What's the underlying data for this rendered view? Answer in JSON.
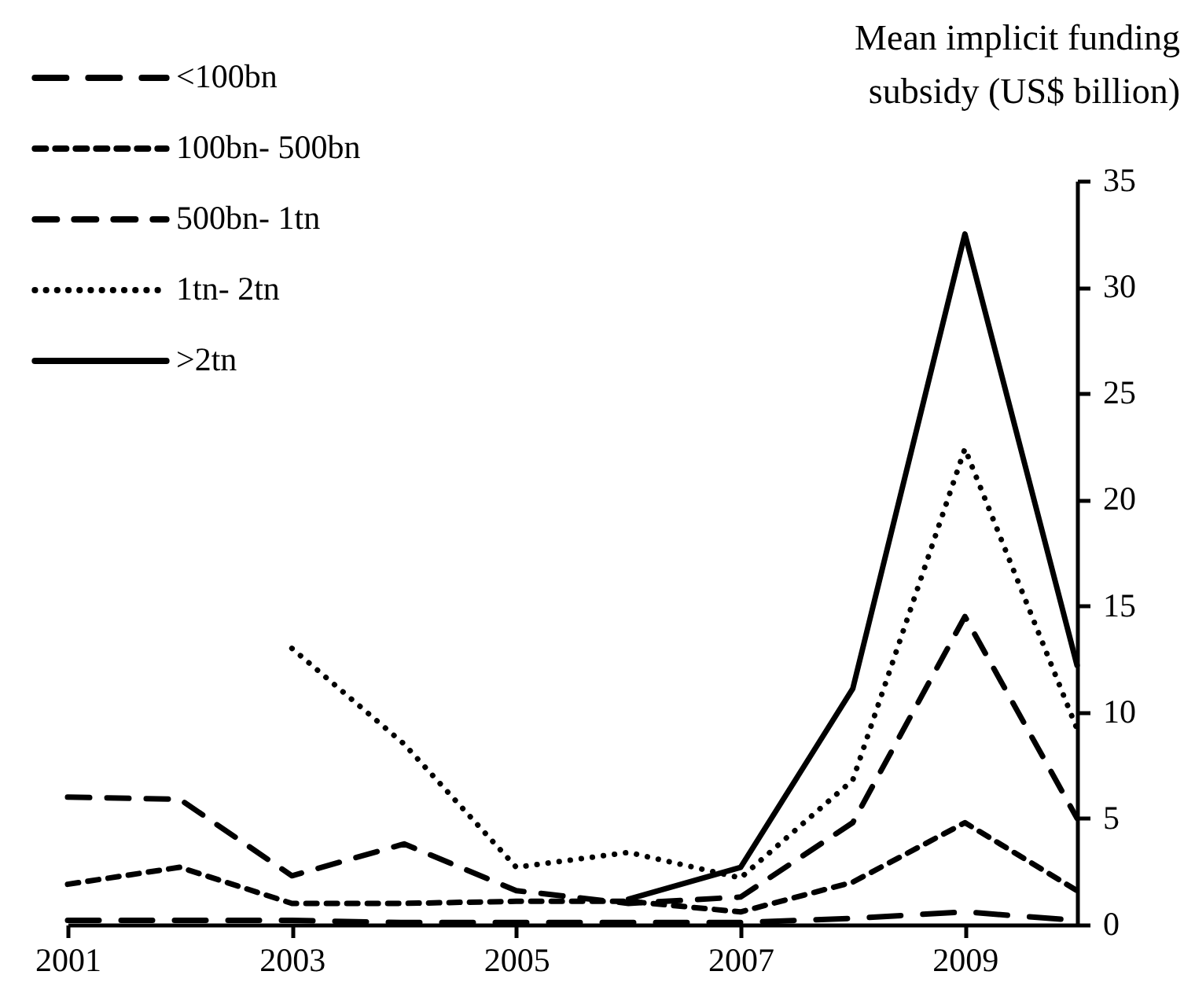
{
  "chart_data": {
    "type": "line",
    "ylabel": "Mean implicit funding subsidy (US$ billion)",
    "x": [
      2001,
      2002,
      2003,
      2004,
      2005,
      2006,
      2007,
      2008,
      2009,
      2010
    ],
    "xlim": [
      2001,
      2010
    ],
    "xticks": [
      2001,
      2003,
      2005,
      2007,
      2009
    ],
    "ylim": [
      0,
      35
    ],
    "yticks": [
      0,
      5,
      10,
      15,
      20,
      25,
      30,
      35
    ],
    "grid": false,
    "legend": "top left",
    "marker": "none",
    "series": [
      {
        "name": "<100bn",
        "color": "#000000",
        "line_style": "dashed",
        "values": [
          0.2,
          0.2,
          0.2,
          0.1,
          0.1,
          0.1,
          0.1,
          0.3,
          0.6,
          0.2
        ]
      },
      {
        "name": "100bn- 500bn",
        "color": "#000000",
        "line_style": "dashed",
        "values": [
          1.9,
          2.7,
          1.0,
          1.0,
          1.1,
          1.1,
          0.6,
          2.0,
          4.8,
          1.6
        ]
      },
      {
        "name": "500bn- 1tn",
        "color": "#000000",
        "line_style": "dashed",
        "values": [
          6.0,
          5.9,
          2.3,
          3.8,
          1.6,
          1.0,
          1.3,
          4.8,
          14.5,
          5.0
        ]
      },
      {
        "name": "1tn- 2tn",
        "color": "#000000",
        "line_style": "dotted",
        "values": [
          null,
          null,
          13.0,
          8.5,
          2.7,
          3.4,
          2.2,
          6.8,
          22.4,
          9.2
        ]
      },
      {
        "name": ">2tn",
        "color": "#000000",
        "line_style": "solid",
        "values": [
          null,
          null,
          null,
          null,
          null,
          1.2,
          2.7,
          11.1,
          32.5,
          12.2
        ]
      }
    ]
  }
}
